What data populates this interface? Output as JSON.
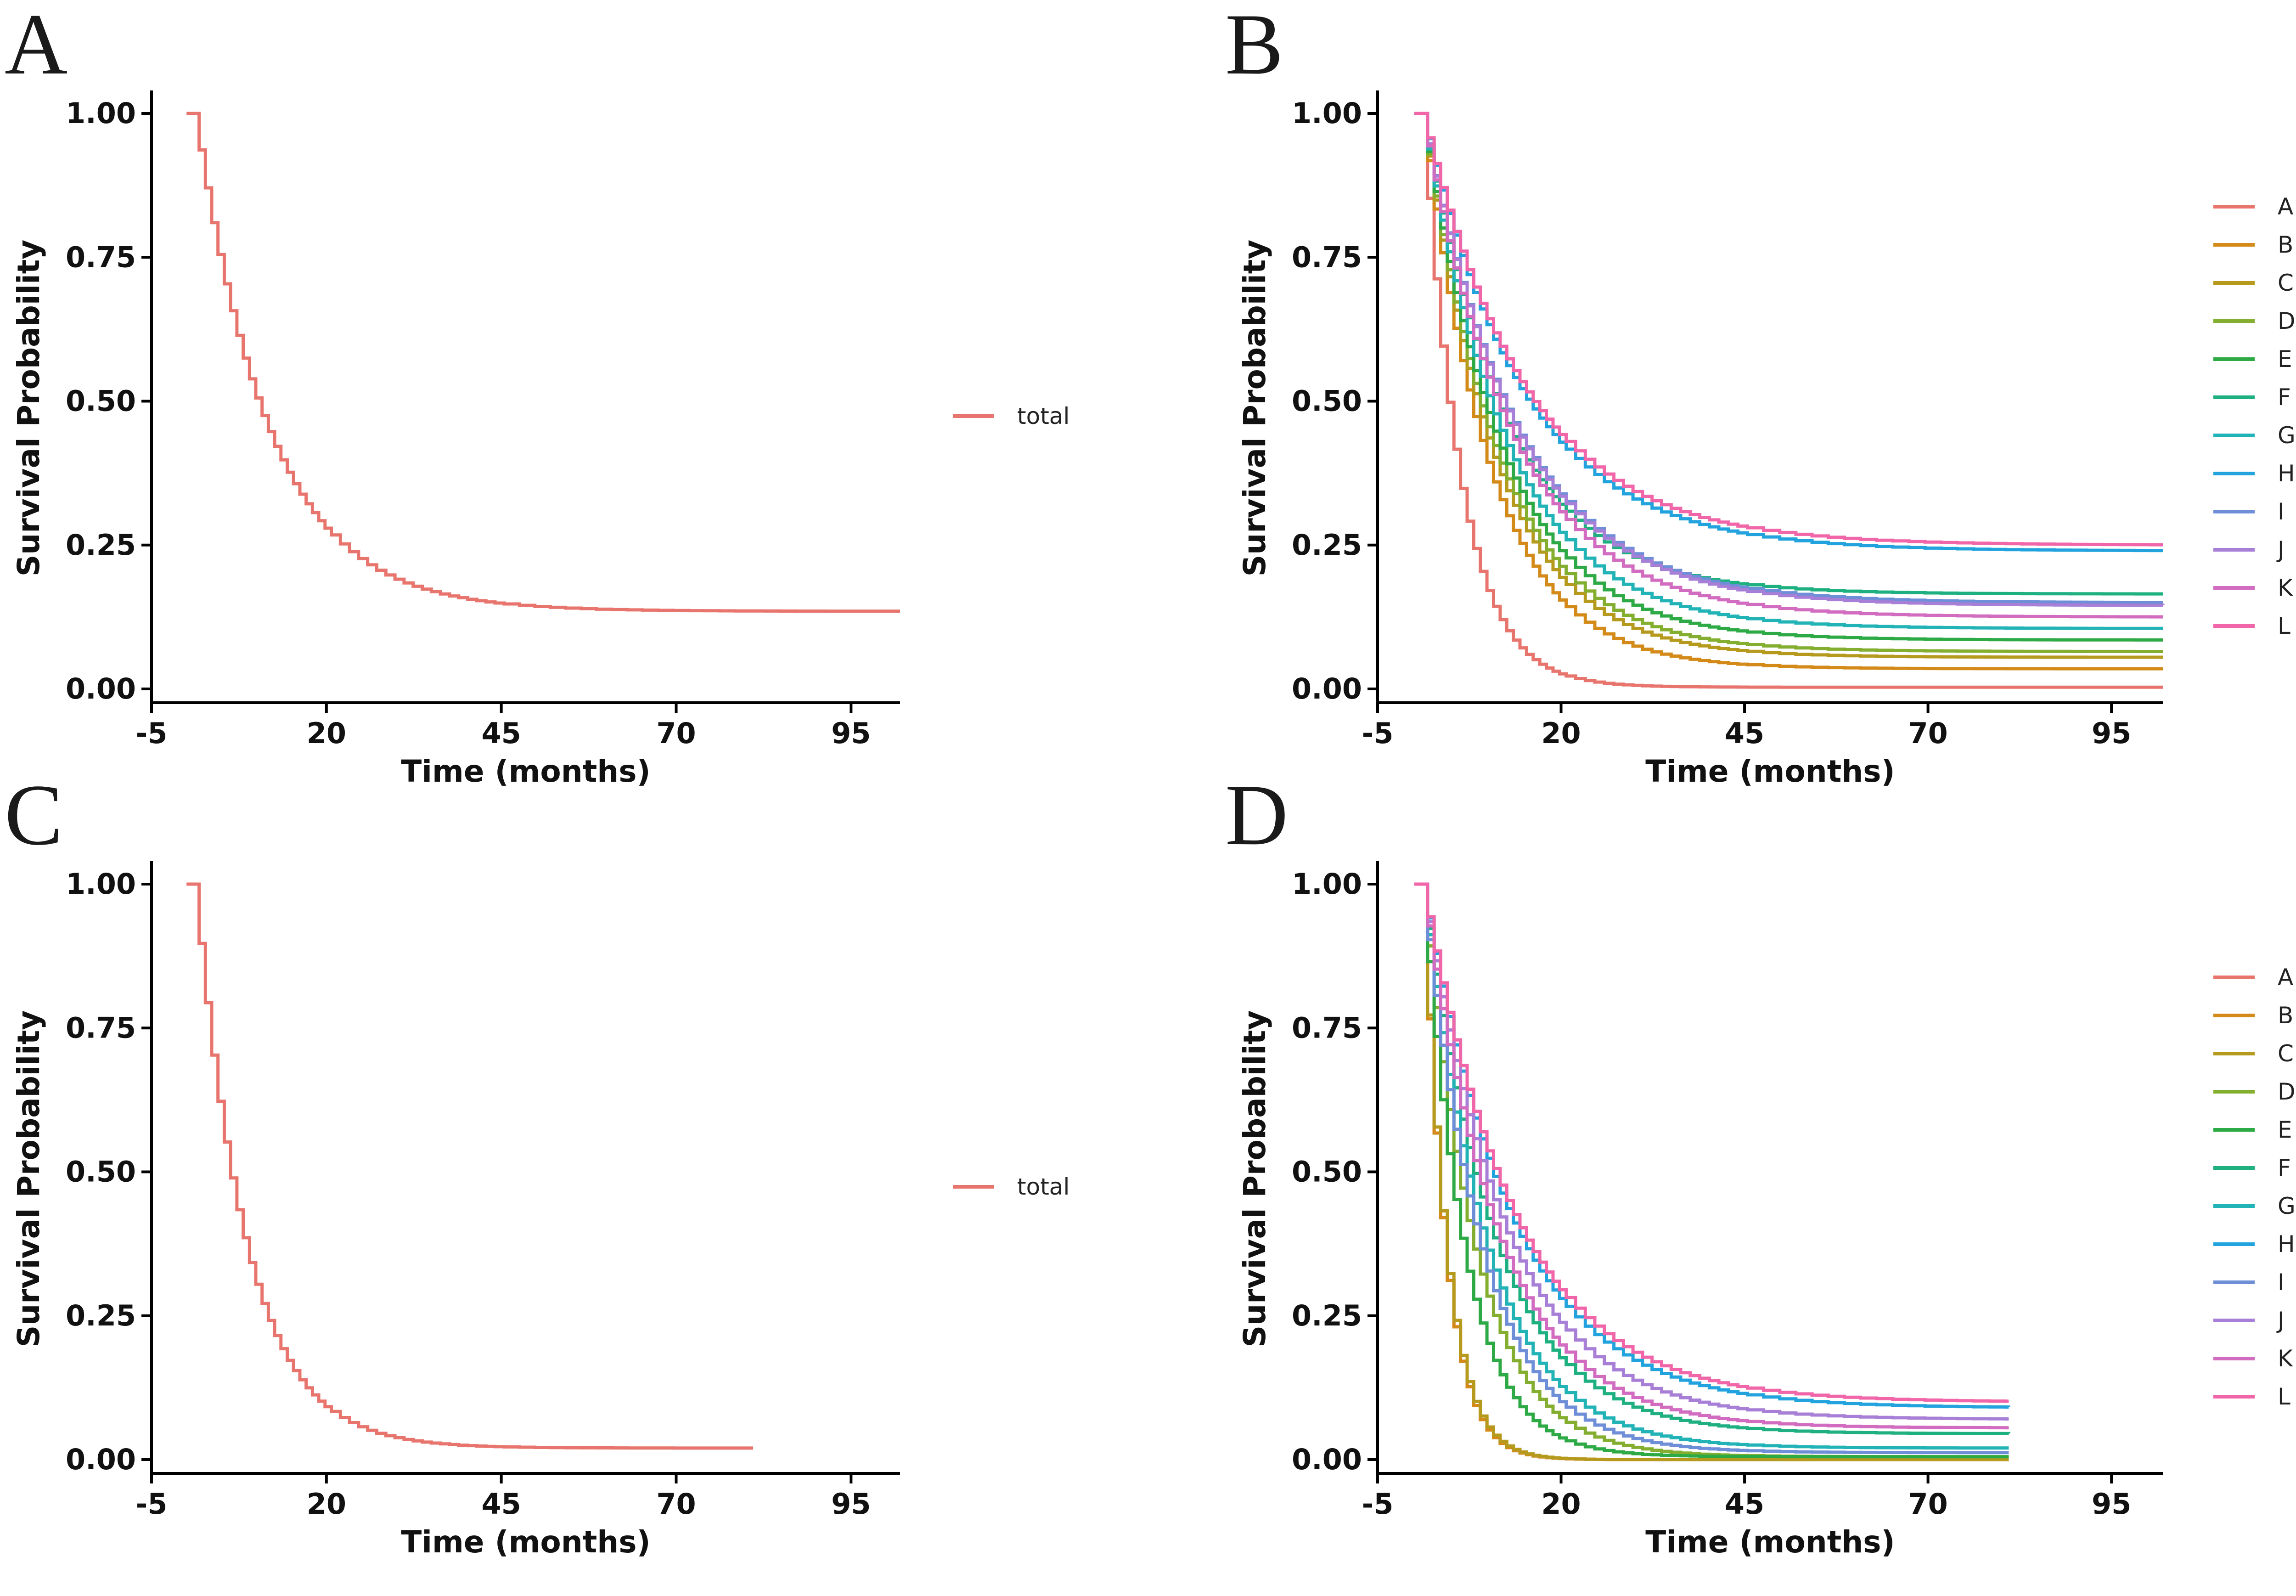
{
  "figure": {
    "panels": [
      "A",
      "B",
      "C",
      "D"
    ]
  },
  "chart_data": [
    {
      "panel": "A",
      "type": "line",
      "subtype": "kaplan-meier",
      "xlabel": "Time (months)",
      "ylabel": "Survival Probability",
      "xlim": [
        -5,
        102
      ],
      "ylim": [
        0,
        1
      ],
      "xticks": [
        -5,
        20,
        45,
        70,
        95
      ],
      "xtick_labels": [
        "-5",
        "20",
        "45",
        "70",
        "95"
      ],
      "yticks": [
        0,
        0.25,
        0.5,
        0.75,
        1
      ],
      "ytick_labels": [
        "0.00",
        "0.25",
        "0.50",
        "0.75",
        "1.00"
      ],
      "legend_position": "right",
      "series": [
        {
          "name": "total",
          "color": "#E8756D",
          "t_end": 102,
          "tau": 10.5,
          "plateau": 0.135,
          "step_start": 1
        }
      ]
    },
    {
      "panel": "B",
      "type": "line",
      "subtype": "kaplan-meier",
      "xlabel": "Time (months)",
      "ylabel": "Survival Probability",
      "xlim": [
        -5,
        102
      ],
      "ylim": [
        0,
        1
      ],
      "xticks": [
        -5,
        20,
        45,
        70,
        95
      ],
      "xtick_labels": [
        "-5",
        "20",
        "45",
        "70",
        "95"
      ],
      "yticks": [
        0,
        0.25,
        0.5,
        0.75,
        1
      ],
      "ytick_labels": [
        "0.00",
        "0.25",
        "0.50",
        "0.75",
        "1.00"
      ],
      "legend_position": "right",
      "series": [
        {
          "name": "A",
          "color": "#E8756D",
          "t_end": 102,
          "tau": 5.0,
          "plateau": 0.003,
          "step_start": 1
        },
        {
          "name": "B",
          "color": "#D38A18",
          "t_end": 102,
          "tau": 9.0,
          "plateau": 0.035,
          "step_start": 1
        },
        {
          "name": "C",
          "color": "#B59A1E",
          "t_end": 102,
          "tau": 9.8,
          "plateau": 0.055,
          "step_start": 1
        },
        {
          "name": "D",
          "color": "#84AE2F",
          "t_end": 102,
          "tau": 10.2,
          "plateau": 0.065,
          "step_start": 1
        },
        {
          "name": "E",
          "color": "#2DAA45",
          "t_end": 102,
          "tau": 10.6,
          "plateau": 0.085,
          "step_start": 1
        },
        {
          "name": "F",
          "color": "#1FB081",
          "t_end": 102,
          "tau": 11.2,
          "plateau": 0.165,
          "step_start": 1
        },
        {
          "name": "G",
          "color": "#22B3B7",
          "t_end": 102,
          "tau": 11.2,
          "plateau": 0.105,
          "step_start": 1
        },
        {
          "name": "H",
          "color": "#22A3DE",
          "t_end": 102,
          "tau": 13.5,
          "plateau": 0.24,
          "step_start": 1
        },
        {
          "name": "I",
          "color": "#6E8FD8",
          "t_end": 102,
          "tau": 12.5,
          "plateau": 0.15,
          "step_start": 1
        },
        {
          "name": "J",
          "color": "#A87FD6",
          "t_end": 102,
          "tau": 12.5,
          "plateau": 0.145,
          "step_start": 1
        },
        {
          "name": "K",
          "color": "#D26CC1",
          "t_end": 102,
          "tau": 12.0,
          "plateau": 0.125,
          "step_start": 1
        },
        {
          "name": "L",
          "color": "#F066A8",
          "t_end": 102,
          "tau": 13.8,
          "plateau": 0.25,
          "step_start": 1
        }
      ]
    },
    {
      "panel": "C",
      "type": "line",
      "subtype": "kaplan-meier",
      "xlabel": "Time (months)",
      "ylabel": "Survival Probability",
      "xlim": [
        -5,
        102
      ],
      "ylim": [
        0,
        1
      ],
      "xticks": [
        -5,
        20,
        45,
        70,
        95
      ],
      "xtick_labels": [
        "-5",
        "20",
        "45",
        "70",
        "95"
      ],
      "yticks": [
        0,
        0.25,
        0.5,
        0.75,
        1
      ],
      "ytick_labels": [
        "0.00",
        "0.25",
        "0.50",
        "0.75",
        "1.00"
      ],
      "legend_position": "right",
      "series": [
        {
          "name": "total",
          "color": "#E8756D",
          "t_end": 81,
          "tau": 7.2,
          "plateau": 0.02,
          "step_start": 1
        }
      ]
    },
    {
      "panel": "D",
      "type": "line",
      "subtype": "kaplan-meier",
      "xlabel": "Time (months)",
      "ylabel": "Survival Probability",
      "xlim": [
        -5,
        102
      ],
      "ylim": [
        0,
        1
      ],
      "xticks": [
        -5,
        20,
        45,
        70,
        95
      ],
      "xtick_labels": [
        "-5",
        "20",
        "45",
        "70",
        "95"
      ],
      "yticks": [
        0,
        0.25,
        0.5,
        0.75,
        1
      ],
      "ytick_labels": [
        "0.00",
        "0.25",
        "0.50",
        "0.75",
        "1.00"
      ],
      "legend_position": "right",
      "series": [
        {
          "name": "A",
          "color": "#E8756D",
          "t_end": 81,
          "tau": 3.0,
          "plateau": 0.0,
          "step_start": 1
        },
        {
          "name": "B",
          "color": "#D38A18",
          "t_end": 81,
          "tau": 3.0,
          "plateau": 0.0,
          "step_start": 1
        },
        {
          "name": "C",
          "color": "#B59A1E",
          "t_end": 81,
          "tau": 3.1,
          "plateau": 0.0,
          "step_start": 1
        },
        {
          "name": "D",
          "color": "#84AE2F",
          "t_end": 81,
          "tau": 7.0,
          "plateau": 0.005,
          "step_start": 1
        },
        {
          "name": "E",
          "color": "#2DAA45",
          "t_end": 81,
          "tau": 5.5,
          "plateau": 0.005,
          "step_start": 1
        },
        {
          "name": "F",
          "color": "#1FB081",
          "t_end": 81,
          "tau": 9.5,
          "plateau": 0.045,
          "step_start": 1
        },
        {
          "name": "G",
          "color": "#22B3B7",
          "t_end": 81,
          "tau": 8.5,
          "plateau": 0.02,
          "step_start": 1
        },
        {
          "name": "H",
          "color": "#22A3DE",
          "t_end": 81,
          "tau": 12.0,
          "plateau": 0.09,
          "step_start": 1
        },
        {
          "name": "I",
          "color": "#6E8FD8",
          "t_end": 81,
          "tau": 7.8,
          "plateau": 0.012,
          "step_start": 1
        },
        {
          "name": "J",
          "color": "#A87FD6",
          "t_end": 81,
          "tau": 11.0,
          "plateau": 0.07,
          "step_start": 1
        },
        {
          "name": "K",
          "color": "#D26CC1",
          "t_end": 81,
          "tau": 10.0,
          "plateau": 0.055,
          "step_start": 1
        },
        {
          "name": "L",
          "color": "#F066A8",
          "t_end": 81,
          "tau": 12.3,
          "plateau": 0.1,
          "step_start": 1
        }
      ]
    }
  ]
}
